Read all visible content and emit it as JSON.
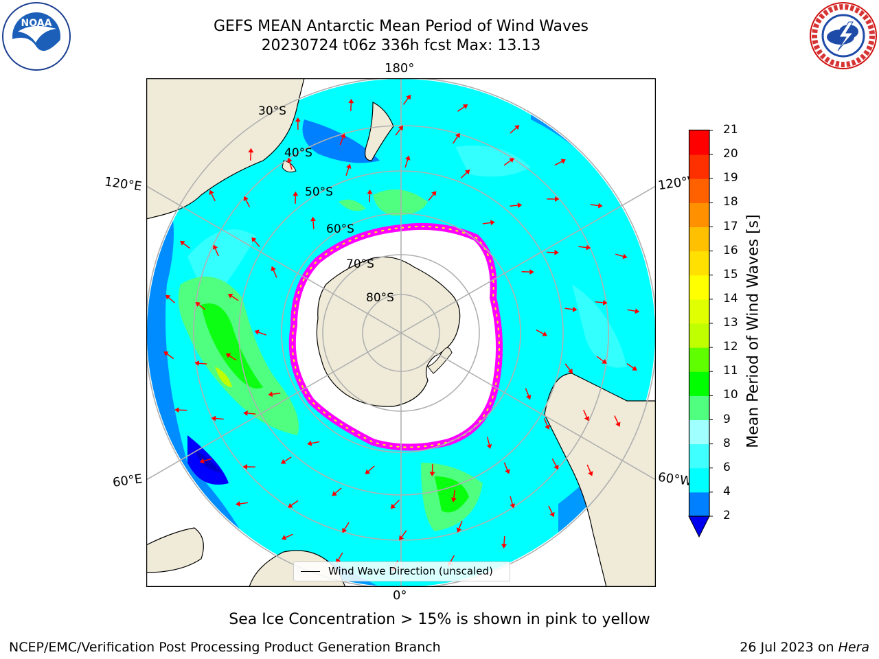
{
  "header": {
    "title_line1": "GEFS MEAN Antarctic Mean Period of Wind Waves",
    "title_line2": "20230724 t06z 336h fcst   Max: 13.13"
  },
  "logos": {
    "noara_text": "NOAA",
    "nws_text": "NATIONAL WEATHER SERVICE"
  },
  "map": {
    "lon_labels": {
      "top": "180°",
      "bottom": "0°",
      "left_upper": "120°E",
      "right_upper": "120°W",
      "left_lower": "60°E",
      "right_lower": "60°W"
    },
    "lat_labels": [
      "30°S",
      "40°S",
      "50°S",
      "60°S",
      "70°S",
      "80°S"
    ],
    "legend_label": "Wind Wave Direction (unscaled)",
    "arrow_color": "#ff0000",
    "land_color": "#efebd8",
    "ice_colors": [
      "#ff00ff",
      "#ffff00"
    ]
  },
  "colorbar": {
    "label": "Mean Period of Wind Waves [s]",
    "ticks": [
      "2",
      "4",
      "6",
      "8",
      "9",
      "10",
      "11",
      "12",
      "13",
      "14",
      "15",
      "16",
      "17",
      "18",
      "19",
      "20",
      "21"
    ],
    "colors": [
      "#0000ff",
      "#0080ff",
      "#00ffff",
      "#40ffff",
      "#a0ffff",
      "#50ff80",
      "#00ff00",
      "#60ff00",
      "#c0ff00",
      "#e0ff00",
      "#ffff00",
      "#ffe000",
      "#ffc000",
      "#ff9000",
      "#ff6000",
      "#ff3000",
      "#ff0000"
    ],
    "extend_color": "#0000ee"
  },
  "caption": "Sea Ice Concentration > 15% is shown in pink to yellow",
  "footer": {
    "left": "NCEP/EMC/Verification Post Processing Product Generation Branch",
    "date": "26 Jul 2023 on ",
    "host": "Hera"
  }
}
